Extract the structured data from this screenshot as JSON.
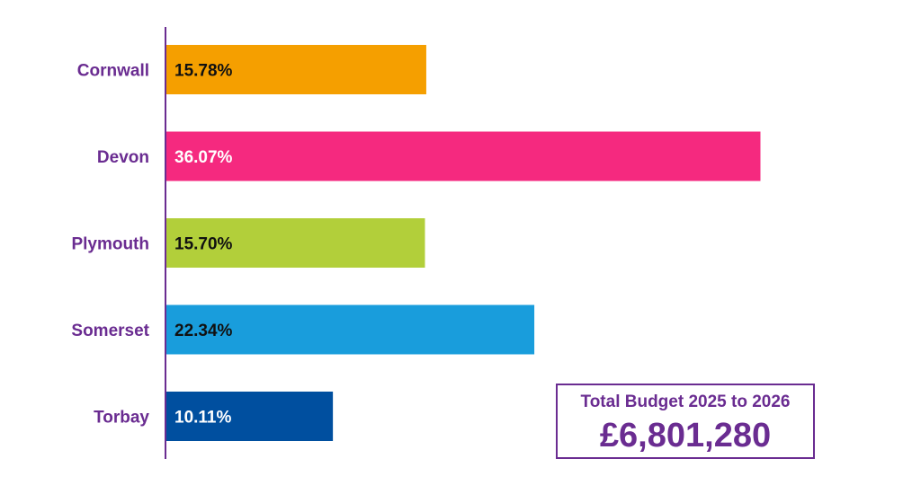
{
  "chart_data": {
    "type": "bar",
    "orientation": "horizontal",
    "categories": [
      "Cornwall",
      "Devon",
      "Plymouth",
      "Somerset",
      "Torbay"
    ],
    "values": [
      15.78,
      36.07,
      15.7,
      22.34,
      10.11
    ],
    "value_labels": [
      "15.78%",
      "36.07%",
      "15.70%",
      "22.34%",
      "10.11%"
    ],
    "colors": [
      "#f59f00",
      "#f5297f",
      "#b2cf3a",
      "#199ddc",
      "#004f9f"
    ],
    "label_colors": [
      "#111111",
      "#ffffff",
      "#111111",
      "#111111",
      "#ffffff"
    ],
    "category_color": "#6a2c91",
    "axis_color": "#6a2c91",
    "xlim": [
      0,
      45
    ],
    "grid": false,
    "legend": "none"
  },
  "summary_box": {
    "title": "Total Budget 2025 to 2026",
    "value": "£6,801,280",
    "border_color": "#6a2c91",
    "text_color": "#6a2c91"
  }
}
